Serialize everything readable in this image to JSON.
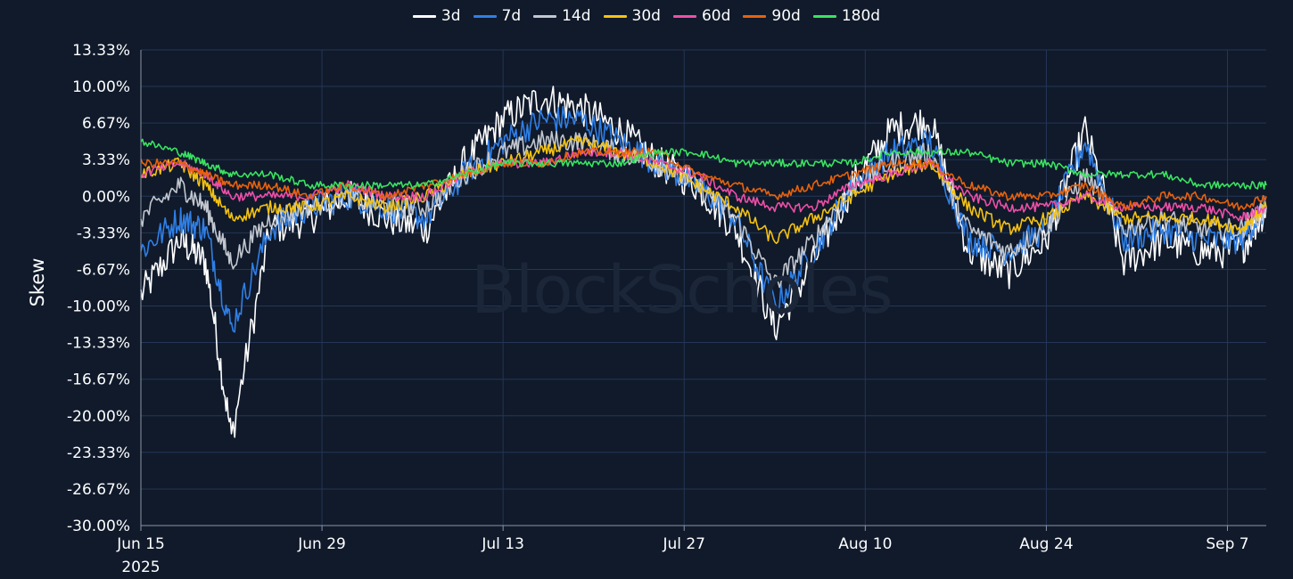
{
  "watermark": "BlockScholes",
  "chart_data": {
    "type": "line",
    "title": "",
    "ylabel": "Skew",
    "xlabel": "",
    "ylim": [
      -30,
      13.33
    ],
    "yticks": [
      "13.33%",
      "10.00%",
      "6.67%",
      "3.33%",
      "0.00%",
      "-3.33%",
      "-6.67%",
      "-10.00%",
      "-13.33%",
      "-16.67%",
      "-20.00%",
      "-23.33%",
      "-26.67%",
      "-30.00%"
    ],
    "xticks": [
      {
        "date": "2025-06-15",
        "label": "Jun 15",
        "sub": "2025"
      },
      {
        "date": "2025-06-29",
        "label": "Jun 29"
      },
      {
        "date": "2025-07-13",
        "label": "Jul 13"
      },
      {
        "date": "2025-07-27",
        "label": "Jul 27"
      },
      {
        "date": "2025-08-10",
        "label": "Aug 10"
      },
      {
        "date": "2025-08-24",
        "label": "Aug 24"
      },
      {
        "date": "2025-09-07",
        "label": "Sep 7"
      }
    ],
    "xlim": [
      "2025-06-15",
      "2025-09-10"
    ],
    "grid": true,
    "legend_position": "top-center",
    "x": [
      "2025-06-15",
      "2025-06-18",
      "2025-06-20",
      "2025-06-22",
      "2025-06-25",
      "2025-06-28",
      "2025-07-01",
      "2025-07-04",
      "2025-07-07",
      "2025-07-10",
      "2025-07-13",
      "2025-07-16",
      "2025-07-19",
      "2025-07-22",
      "2025-07-25",
      "2025-07-28",
      "2025-07-31",
      "2025-08-03",
      "2025-08-06",
      "2025-08-09",
      "2025-08-12",
      "2025-08-15",
      "2025-08-18",
      "2025-08-21",
      "2025-08-24",
      "2025-08-27",
      "2025-08-30",
      "2025-09-02",
      "2025-09-05",
      "2025-09-08",
      "2025-09-10"
    ],
    "series": [
      {
        "name": "3d",
        "color": "#ffffff",
        "noise": 1.6,
        "values": [
          -9,
          -4,
          -6,
          -22,
          -3,
          -2,
          0,
          -2,
          -3,
          3,
          7,
          9,
          8,
          6,
          3,
          1,
          -3,
          -12,
          -6,
          1,
          6,
          7,
          -5,
          -7,
          -4,
          6,
          -6,
          -4,
          -5,
          -5,
          -1
        ]
      },
      {
        "name": "7d",
        "color": "#2f7fe6",
        "noise": 1.3,
        "values": [
          -5,
          -2,
          -3,
          -12,
          -3,
          -1,
          0,
          -1,
          -2,
          2,
          5,
          7,
          7,
          5,
          3,
          1,
          -2,
          -10,
          -5,
          1,
          4,
          5,
          -4,
          -5,
          -3,
          5,
          -4,
          -3,
          -4,
          -4,
          -1
        ]
      },
      {
        "name": "14d",
        "color": "#c2c7cf",
        "noise": 1.0,
        "values": [
          -2,
          1,
          -1,
          -6,
          -2,
          -1,
          0,
          -1,
          -1,
          2,
          4,
          5,
          5,
          4,
          3,
          1,
          -2,
          -8,
          -4,
          1,
          3,
          4,
          -3,
          -5,
          -3,
          2,
          -3,
          -2,
          -3,
          -3,
          -1
        ]
      },
      {
        "name": "30d",
        "color": "#f5c211",
        "noise": 0.6,
        "values": [
          2,
          3,
          1,
          -2,
          -1,
          -1,
          0,
          -1,
          0,
          2,
          3,
          4,
          5,
          4,
          3,
          1,
          -1,
          -4,
          -2,
          0,
          2,
          3,
          -1,
          -3,
          -2,
          0,
          -2,
          -2,
          -2,
          -3,
          -1
        ]
      },
      {
        "name": "60d",
        "color": "#ef4fa6",
        "noise": 0.45,
        "values": [
          2,
          3,
          2,
          0,
          0,
          0,
          1,
          0,
          0,
          2,
          3,
          3,
          4,
          4,
          3,
          2,
          0,
          -1,
          -1,
          1,
          2,
          3,
          0,
          -1,
          -1,
          0,
          -1,
          -1,
          -1,
          -2,
          -1
        ]
      },
      {
        "name": "90d",
        "color": "#e8620c",
        "noise": 0.4,
        "values": [
          3,
          3,
          2,
          1,
          1,
          0,
          1,
          0,
          1,
          2,
          3,
          3,
          4,
          4,
          4,
          2,
          1,
          0,
          1,
          2,
          3,
          3,
          1,
          0,
          0,
          1,
          -1,
          0,
          0,
          -1,
          0
        ]
      },
      {
        "name": "180d",
        "color": "#39e35f",
        "noise": 0.35,
        "values": [
          5,
          4,
          3,
          2,
          2,
          1,
          1,
          1,
          1,
          2,
          3,
          3,
          3,
          3,
          4,
          4,
          3,
          3,
          3,
          3,
          4,
          4,
          4,
          3,
          3,
          2,
          2,
          2,
          1,
          1,
          1
        ]
      }
    ]
  }
}
